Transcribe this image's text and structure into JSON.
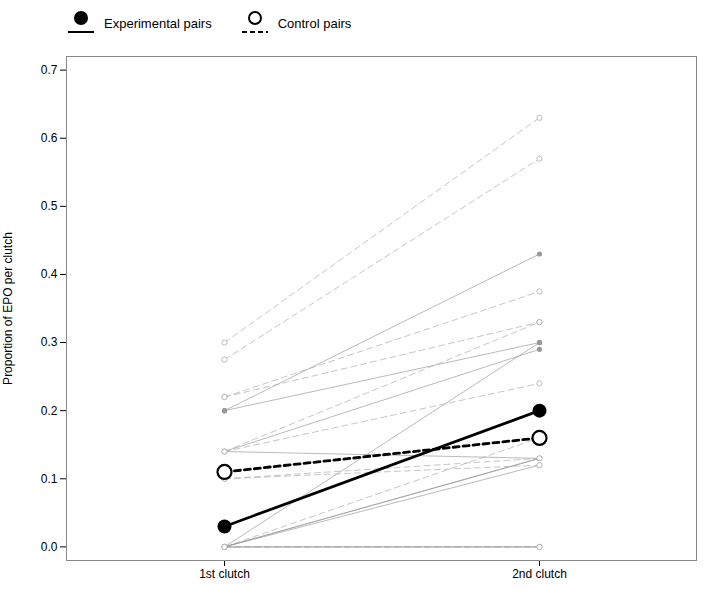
{
  "chart_data": {
    "type": "line",
    "categories": [
      "1st clutch",
      "2nd clutch"
    ],
    "ylabel": "Proportion of EPO per clutch",
    "ylim": [
      -0.02,
      0.72
    ],
    "yticks": [
      {
        "value": 0.0,
        "label": "0.0"
      },
      0.1,
      0.2,
      0.3,
      0.4,
      0.5,
      0.6,
      0.7
    ],
    "grid": false,
    "legend": "upper left",
    "series": [
      {
        "color": "#999999",
        "line_style": "solid",
        "marker": "filled_circle",
        "values": [
          0.2,
          0.43
        ]
      },
      {
        "color": "#999999",
        "line_style": "solid",
        "marker": "filled_circle",
        "values": [
          0.14,
          0.13
        ]
      },
      {
        "color": "#999999",
        "line_style": "solid",
        "marker": "filled_circle",
        "values": [
          0.2,
          0.3
        ]
      },
      {
        "color": "#999999",
        "line_style": "solid",
        "marker": "filled_circle",
        "values": [
          0.0,
          0.3
        ]
      },
      {
        "color": "#999999",
        "line_style": "solid",
        "marker": "filled_circle",
        "values": [
          0.0,
          0.13
        ]
      },
      {
        "color": "#999999",
        "line_style": "solid",
        "marker": "filled_circle",
        "values": [
          0.0,
          0.0
        ]
      },
      {
        "color": "#999999",
        "line_style": "solid",
        "marker": "filled_circle",
        "values": [
          0.0,
          0.0
        ]
      },
      {
        "color": "#999999",
        "line_style": "solid",
        "marker": "filled_circle",
        "values": [
          0.0,
          0.13
        ]
      },
      {
        "color": "#999999",
        "line_style": "solid",
        "marker": "filled_circle",
        "values": [
          0.14,
          0.29
        ]
      },
      {
        "color": "#999999",
        "line_style": "solid",
        "marker": "filled_circle",
        "values": [
          0.0,
          0.12
        ]
      },
      {
        "color": "#aaaaaa",
        "line_style": "dashed",
        "marker": "open_circle",
        "values": [
          0.3,
          0.63
        ]
      },
      {
        "color": "#aaaaaa",
        "line_style": "dashed",
        "marker": "open_circle",
        "values": [
          0.275,
          0.57
        ]
      },
      {
        "color": "#aaaaaa",
        "line_style": "dashed",
        "marker": "open_circle",
        "values": [
          0.22,
          0.33
        ]
      },
      {
        "color": "#aaaaaa",
        "line_style": "dashed",
        "marker": "open_circle",
        "values": [
          0.22,
          0.375
        ]
      },
      {
        "color": "#aaaaaa",
        "line_style": "dashed",
        "marker": "open_circle",
        "values": [
          0.14,
          0.24
        ]
      },
      {
        "color": "#aaaaaa",
        "line_style": "dashed",
        "marker": "open_circle",
        "values": [
          0.14,
          0.33
        ]
      },
      {
        "color": "#aaaaaa",
        "line_style": "dashed",
        "marker": "open_circle",
        "values": [
          0.1,
          0.13
        ]
      },
      {
        "color": "#aaaaaa",
        "line_style": "dashed",
        "marker": "open_circle",
        "values": [
          0.1,
          0.12
        ]
      },
      {
        "color": "#aaaaaa",
        "line_style": "dashed",
        "marker": "open_circle",
        "values": [
          0.0,
          0.0
        ]
      },
      {
        "color": "#aaaaaa",
        "line_style": "dashed",
        "marker": "open_circle",
        "values": [
          0.0,
          0.0
        ]
      },
      {
        "color": "#aaaaaa",
        "line_style": "dashed",
        "marker": "open_circle",
        "values": [
          0.0,
          0.16
        ]
      },
      {
        "name": "Experimental pairs",
        "color": "#000000",
        "line_style": "solid",
        "marker": "filled_circle",
        "values": [
          0.03,
          0.2
        ]
      },
      {
        "name": "Control pairs",
        "color": "#000000",
        "line_style": "dashed",
        "marker": "open_circle",
        "values": [
          0.11,
          0.16
        ]
      }
    ]
  }
}
